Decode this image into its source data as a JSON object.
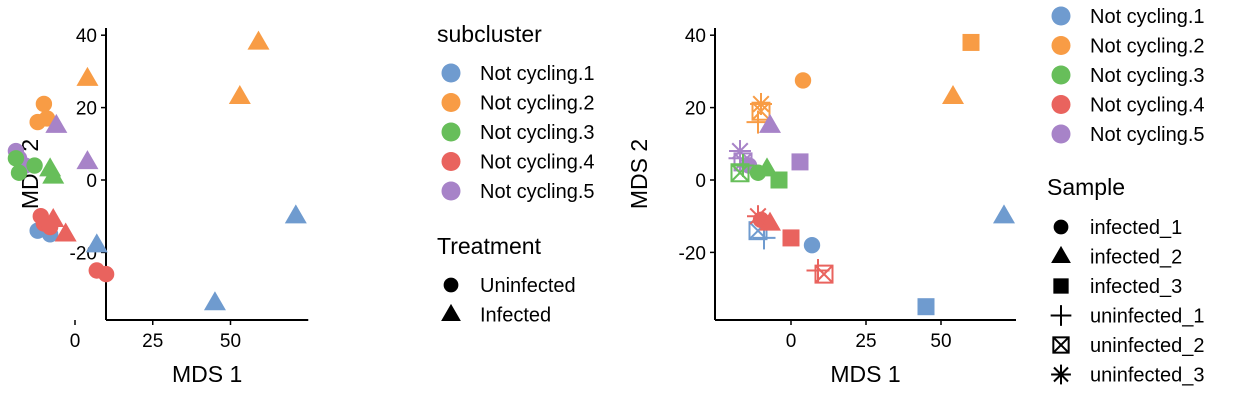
{
  "colors": {
    "Not cycling.1": "#6f9bcf",
    "Not cycling.2": "#f89c45",
    "Not cycling.3": "#67be5a",
    "Not cycling.4": "#e9635e",
    "Not cycling.5": "#a783c8"
  },
  "chart_data": [
    {
      "type": "scatter",
      "xlabel": "MDS 1",
      "ylabel": "MDS 2",
      "xlim": [
        -20,
        75
      ],
      "ylim": [
        -38,
        42
      ],
      "x_ticks": [
        0,
        25,
        50
      ],
      "y_ticks": [
        40,
        20,
        0,
        -20
      ],
      "legend_placement": "right",
      "color_legend": {
        "title": "subcluster",
        "items": [
          "Not cycling.1",
          "Not cycling.2",
          "Not cycling.3",
          "Not cycling.4",
          "Not cycling.5"
        ]
      },
      "shape_legend": {
        "title": "Treatment",
        "items": [
          {
            "label": "Uninfected",
            "shape": "circle"
          },
          {
            "label": "Infected",
            "shape": "triangle"
          }
        ]
      },
      "points": [
        {
          "x": -10,
          "y": 21,
          "group": "Not cycling.2",
          "shape": "circle"
        },
        {
          "x": -12,
          "y": 16,
          "group": "Not cycling.2",
          "shape": "circle"
        },
        {
          "x": -9,
          "y": 17,
          "group": "Not cycling.2",
          "shape": "circle"
        },
        {
          "x": 4,
          "y": 28,
          "group": "Not cycling.2",
          "shape": "triangle"
        },
        {
          "x": 59,
          "y": 38,
          "group": "Not cycling.2",
          "shape": "triangle"
        },
        {
          "x": 53,
          "y": 23,
          "group": "Not cycling.2",
          "shape": "triangle"
        },
        {
          "x": -19,
          "y": 8,
          "group": "Not cycling.5",
          "shape": "circle"
        },
        {
          "x": -18,
          "y": 6,
          "group": "Not cycling.5",
          "shape": "circle"
        },
        {
          "x": -16,
          "y": 4,
          "group": "Not cycling.5",
          "shape": "circle"
        },
        {
          "x": -6,
          "y": 15,
          "group": "Not cycling.5",
          "shape": "triangle"
        },
        {
          "x": 4,
          "y": 5,
          "group": "Not cycling.5",
          "shape": "triangle"
        },
        {
          "x": -19,
          "y": 6,
          "group": "Not cycling.3",
          "shape": "circle"
        },
        {
          "x": -18,
          "y": 2,
          "group": "Not cycling.3",
          "shape": "circle"
        },
        {
          "x": -13,
          "y": 4,
          "group": "Not cycling.3",
          "shape": "circle"
        },
        {
          "x": -8,
          "y": 3,
          "group": "Not cycling.3",
          "shape": "triangle"
        },
        {
          "x": -7,
          "y": 1,
          "group": "Not cycling.3",
          "shape": "triangle"
        },
        {
          "x": -12,
          "y": -14,
          "group": "Not cycling.1",
          "shape": "circle"
        },
        {
          "x": -8,
          "y": -15,
          "group": "Not cycling.1",
          "shape": "circle"
        },
        {
          "x": 7,
          "y": -18,
          "group": "Not cycling.1",
          "shape": "triangle"
        },
        {
          "x": 45,
          "y": -34,
          "group": "Not cycling.1",
          "shape": "triangle"
        },
        {
          "x": 71,
          "y": -10,
          "group": "Not cycling.1",
          "shape": "triangle"
        },
        {
          "x": -11,
          "y": -10,
          "group": "Not cycling.4",
          "shape": "circle"
        },
        {
          "x": -10,
          "y": -12,
          "group": "Not cycling.4",
          "shape": "circle"
        },
        {
          "x": -8,
          "y": -13,
          "group": "Not cycling.4",
          "shape": "circle"
        },
        {
          "x": -7,
          "y": -11,
          "group": "Not cycling.4",
          "shape": "triangle"
        },
        {
          "x": -3,
          "y": -15,
          "group": "Not cycling.4",
          "shape": "triangle"
        },
        {
          "x": 7,
          "y": -25,
          "group": "Not cycling.4",
          "shape": "circle"
        },
        {
          "x": 10,
          "y": -26,
          "group": "Not cycling.4",
          "shape": "circle"
        }
      ]
    },
    {
      "type": "scatter",
      "xlabel": "MDS 1",
      "ylabel": "MDS 2",
      "xlim": [
        -20,
        75
      ],
      "ylim": [
        -38,
        42
      ],
      "x_ticks": [
        0,
        25,
        50
      ],
      "y_ticks": [
        40,
        20,
        0,
        -20
      ],
      "legend_placement": "right",
      "color_legend": {
        "title": "",
        "items": [
          "Not cycling.1",
          "Not cycling.2",
          "Not cycling.3",
          "Not cycling.4",
          "Not cycling.5"
        ]
      },
      "shape_legend": {
        "title": "Sample",
        "items": [
          {
            "label": "infected_1",
            "shape": "circle"
          },
          {
            "label": "infected_2",
            "shape": "triangle"
          },
          {
            "label": "infected_3",
            "shape": "square"
          },
          {
            "label": "uninfected_1",
            "shape": "plus"
          },
          {
            "label": "uninfected_2",
            "shape": "boxx"
          },
          {
            "label": "uninfected_3",
            "shape": "asterisk"
          }
        ]
      },
      "points": [
        {
          "x": 4,
          "y": 27.5,
          "group": "Not cycling.2",
          "shape": "circle"
        },
        {
          "x": 60,
          "y": 38,
          "group": "Not cycling.2",
          "shape": "square"
        },
        {
          "x": 54,
          "y": 23,
          "group": "Not cycling.2",
          "shape": "triangle"
        },
        {
          "x": -11,
          "y": 16,
          "group": "Not cycling.2",
          "shape": "plus"
        },
        {
          "x": -10,
          "y": 19,
          "group": "Not cycling.2",
          "shape": "boxx"
        },
        {
          "x": -10,
          "y": 21,
          "group": "Not cycling.2",
          "shape": "asterisk"
        },
        {
          "x": -7,
          "y": 15,
          "group": "Not cycling.5",
          "shape": "triangle"
        },
        {
          "x": 3,
          "y": 5,
          "group": "Not cycling.5",
          "shape": "square"
        },
        {
          "x": -14,
          "y": 4,
          "group": "Not cycling.5",
          "shape": "circle"
        },
        {
          "x": -17,
          "y": 6,
          "group": "Not cycling.5",
          "shape": "plus"
        },
        {
          "x": -16,
          "y": 5,
          "group": "Not cycling.5",
          "shape": "boxx"
        },
        {
          "x": -17,
          "y": 8,
          "group": "Not cycling.5",
          "shape": "asterisk"
        },
        {
          "x": -8,
          "y": 3,
          "group": "Not cycling.3",
          "shape": "triangle"
        },
        {
          "x": -4,
          "y": 0,
          "group": "Not cycling.3",
          "shape": "square"
        },
        {
          "x": -11,
          "y": 2,
          "group": "Not cycling.3",
          "shape": "circle"
        },
        {
          "x": -17,
          "y": 2,
          "group": "Not cycling.3",
          "shape": "boxx"
        },
        {
          "x": -16,
          "y": 4,
          "group": "Not cycling.3",
          "shape": "plus"
        },
        {
          "x": 7,
          "y": -18,
          "group": "Not cycling.1",
          "shape": "circle"
        },
        {
          "x": 45,
          "y": -35,
          "group": "Not cycling.1",
          "shape": "square"
        },
        {
          "x": 71,
          "y": -10,
          "group": "Not cycling.1",
          "shape": "triangle"
        },
        {
          "x": -9,
          "y": -16,
          "group": "Not cycling.1",
          "shape": "plus"
        },
        {
          "x": -11,
          "y": -14,
          "group": "Not cycling.1",
          "shape": "boxx"
        },
        {
          "x": -10,
          "y": -11,
          "group": "Not cycling.4",
          "shape": "circle"
        },
        {
          "x": -7,
          "y": -12,
          "group": "Not cycling.4",
          "shape": "triangle"
        },
        {
          "x": 0,
          "y": -16,
          "group": "Not cycling.4",
          "shape": "square"
        },
        {
          "x": -11,
          "y": -10,
          "group": "Not cycling.4",
          "shape": "asterisk"
        },
        {
          "x": 9,
          "y": -25,
          "group": "Not cycling.4",
          "shape": "plus"
        },
        {
          "x": 11,
          "y": -26,
          "group": "Not cycling.4",
          "shape": "boxx"
        }
      ]
    }
  ]
}
